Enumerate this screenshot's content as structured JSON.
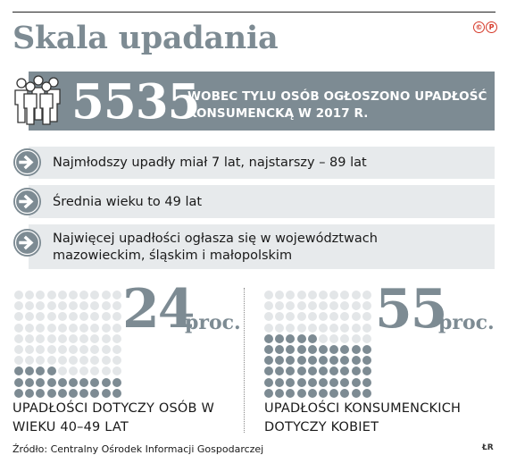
{
  "title": "Skala upadania",
  "logo": [
    "©",
    "P"
  ],
  "banner": {
    "number": "5535",
    "text": "WOBEC TYLU OSÓB OGŁOSZONO UPADŁOŚĆ KONSUMENCKĄ W 2017 R."
  },
  "facts": [
    "Najmłodszy upadły miał 7 lat, najstarszy – 89 lat",
    "Średnia wieku to 49 lat",
    "Najwięcej upadłości ogłasza się w województwach mazowieckim, śląskim i małopolskim"
  ],
  "stats": [
    {
      "value": "24",
      "unit": "proc.",
      "percent": 24,
      "caption": "UPADŁOŚCI DOTYCZY OSÓB W WIEKU 40–49 LAT"
    },
    {
      "value": "55",
      "unit": "proc.",
      "percent": 55,
      "caption": "UPADŁOŚCI KONSUMENCKICH DOTYCZY KOBIET"
    }
  ],
  "source": "Źródło: Centralny Ośrodek Informacji Gospodarczej",
  "initials": "ŁR",
  "colors": {
    "accent": "#7d8b93",
    "dot_light": "#e3e6e8",
    "dot_dark": "#7d8b93",
    "logo_red": "#d63a2a"
  }
}
